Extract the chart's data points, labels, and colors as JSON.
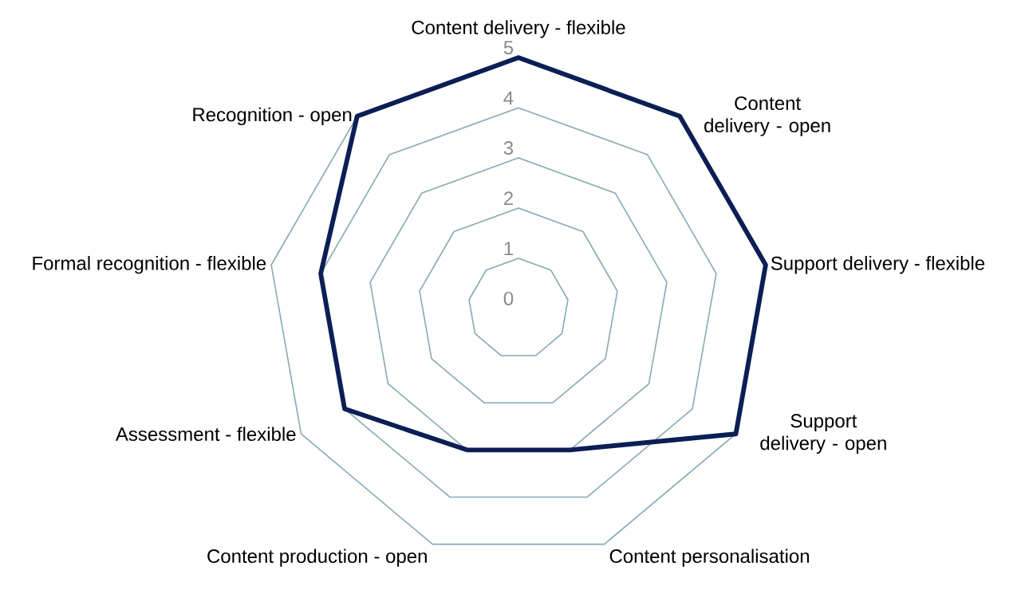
{
  "chart_data": {
    "type": "radar",
    "categories": [
      "Content delivery - flexible",
      "Content delivery - open",
      "Support delivery - flexible",
      "Support delivery - open",
      "Content personalisation",
      "Content production - open",
      "Assessment - flexible",
      "Formal recognition - flexible",
      "Recognition - open"
    ],
    "series": [
      {
        "color": "#0b1f55",
        "values": [
          5,
          5,
          5,
          5,
          3,
          3,
          4,
          4,
          5
        ]
      }
    ],
    "ylim": [
      0,
      5
    ],
    "yticks": [
      0,
      1,
      2,
      3,
      4,
      5
    ],
    "grid": true
  }
}
